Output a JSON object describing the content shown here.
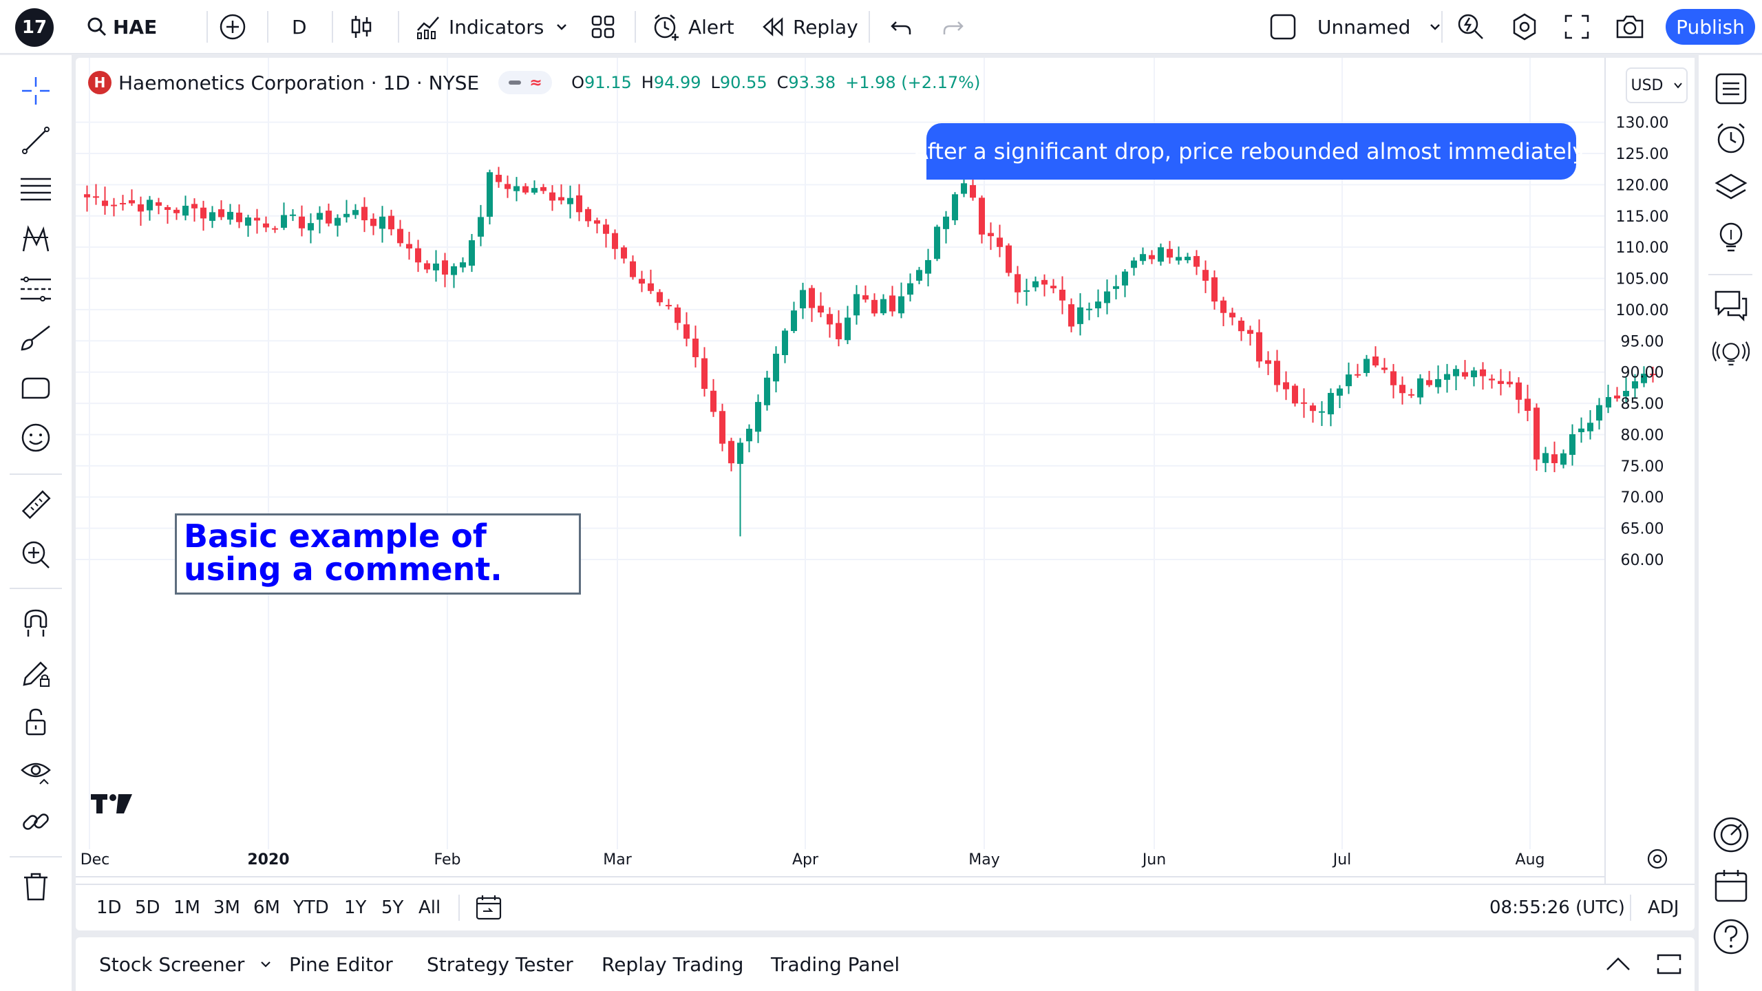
{
  "topbar": {
    "logo_text": "17",
    "symbol": "HAE",
    "interval": "D",
    "indicators_label": "Indicators",
    "alert_label": "Alert",
    "replay_label": "Replay",
    "layout_name": "Unnamed",
    "publish_label": "Publish"
  },
  "legend": {
    "badge": "H",
    "title": "Haemonetics Corporation · 1D · NYSE",
    "o_label": "O",
    "o_value": "91.15",
    "h_label": "H",
    "h_value": "94.99",
    "l_label": "L",
    "l_value": "90.55",
    "c_label": "C",
    "c_value": "93.38",
    "change": "+1.98 (+2.17%)"
  },
  "currency": "USD",
  "callout_text": "After a significant drop, price rebounded almost immediately.",
  "comment_text": "Basic example of using a comment.",
  "range": {
    "buttons": [
      "1D",
      "5D",
      "1M",
      "3M",
      "6M",
      "YTD",
      "1Y",
      "5Y",
      "All"
    ],
    "clock": "08:55:26 (UTC)",
    "adj": "ADJ"
  },
  "bottom": {
    "stock_screener": "Stock Screener",
    "pine_editor": "Pine Editor",
    "strategy_tester": "Strategy Tester",
    "replay_trading": "Replay Trading",
    "trading_panel": "Trading Panel"
  },
  "colors": {
    "up": "#089981",
    "down": "#f23645",
    "accent": "#2962ff",
    "comment_text": "#0000ff"
  },
  "chart_data": {
    "type": "candlestick",
    "y_axis": {
      "ticks": [
        60,
        65,
        70,
        75,
        80,
        85,
        90,
        95,
        100,
        105,
        110,
        115,
        120,
        125,
        130
      ],
      "labels": [
        "60.00",
        "65.00",
        "70.00",
        "75.00",
        "80.00",
        "85.00",
        "90.00",
        "95.00",
        "100.00",
        "105.00",
        "110.00",
        "115.00",
        "120.00",
        "125.00",
        "130.00"
      ]
    },
    "x_axis": {
      "labels": [
        "Dec",
        "2020",
        "Feb",
        "Mar",
        "Apr",
        "May",
        "Jun",
        "Jul",
        "Aug"
      ],
      "label_bar_index": [
        0,
        20,
        40,
        59,
        80,
        100,
        119,
        140,
        161
      ]
    },
    "grid": true,
    "anchors": [
      [
        0,
        118
      ],
      [
        5,
        117
      ],
      [
        10,
        116
      ],
      [
        15,
        115.5
      ],
      [
        20,
        114
      ],
      [
        25,
        114
      ],
      [
        30,
        115.5
      ],
      [
        34,
        113
      ],
      [
        37,
        108
      ],
      [
        40,
        106
      ],
      [
        43,
        110
      ],
      [
        45,
        121
      ],
      [
        49,
        119
      ],
      [
        54,
        118
      ],
      [
        57,
        114
      ],
      [
        60,
        107
      ],
      [
        63,
        103
      ],
      [
        66,
        98
      ],
      [
        68,
        93
      ],
      [
        70,
        83
      ],
      [
        72,
        76
      ],
      [
        74,
        80
      ],
      [
        76,
        88
      ],
      [
        78,
        96
      ],
      [
        80,
        103
      ],
      [
        82,
        100
      ],
      [
        84,
        96
      ],
      [
        86,
        102
      ],
      [
        88,
        100
      ],
      [
        90,
        101
      ],
      [
        92,
        104
      ],
      [
        94,
        109
      ],
      [
        96,
        115
      ],
      [
        98,
        120
      ],
      [
        99,
        118
      ],
      [
        100,
        113
      ],
      [
        102,
        109
      ],
      [
        104,
        104
      ],
      [
        106,
        104
      ],
      [
        108,
        103
      ],
      [
        110,
        98
      ],
      [
        112,
        101
      ],
      [
        114,
        104
      ],
      [
        116,
        106
      ],
      [
        118,
        108
      ],
      [
        120,
        110
      ],
      [
        122,
        109
      ],
      [
        124,
        108
      ],
      [
        126,
        102
      ],
      [
        128,
        98
      ],
      [
        130,
        97
      ],
      [
        131,
        93
      ],
      [
        133,
        89
      ],
      [
        135,
        86
      ],
      [
        137,
        84
      ],
      [
        139,
        86
      ],
      [
        141,
        89
      ],
      [
        143,
        91
      ],
      [
        145,
        90
      ],
      [
        147,
        87
      ],
      [
        149,
        88
      ],
      [
        151,
        90
      ],
      [
        153,
        91
      ],
      [
        155,
        90
      ],
      [
        157,
        89
      ],
      [
        159,
        87
      ],
      [
        161,
        84
      ],
      [
        162,
        77
      ],
      [
        164,
        75
      ],
      [
        166,
        79
      ],
      [
        168,
        82
      ],
      [
        170,
        85
      ],
      [
        172,
        87
      ],
      [
        174,
        89
      ],
      [
        175,
        88.5
      ]
    ]
  }
}
